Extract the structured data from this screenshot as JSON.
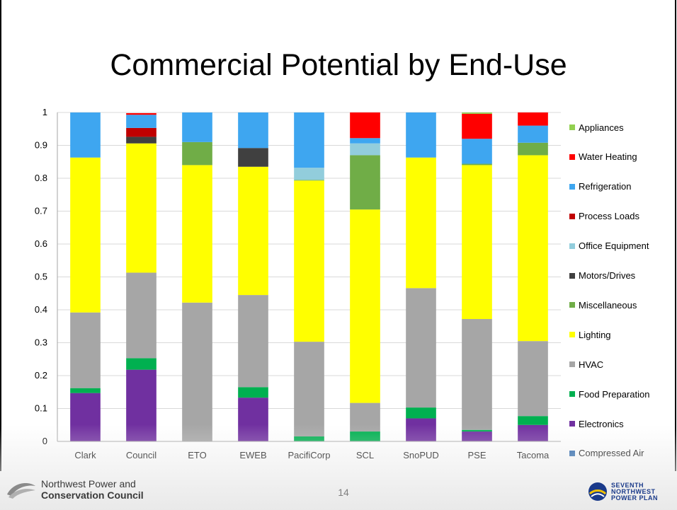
{
  "slide": {
    "title": "Commercial Potential by End-Use",
    "page_number": "14",
    "footer_left": {
      "line1": "Northwest Power and",
      "line2": "Conservation Council"
    },
    "footer_right": {
      "line1": "SEVENTH",
      "line2": "NORTHWEST",
      "line3": "POWER PLAN"
    }
  },
  "chart_data": {
    "type": "bar",
    "stacked": true,
    "title": "",
    "xlabel": "",
    "ylabel": "",
    "ylim": [
      0,
      1
    ],
    "yticks": [
      "0",
      "0.1",
      "0.2",
      "0.3",
      "0.4",
      "0.5",
      "0.6",
      "0.7",
      "0.8",
      "0.9",
      "1"
    ],
    "grid": true,
    "legend_position": "right",
    "categories": [
      "Clark",
      "Council",
      "ETO",
      "EWEB",
      "PacifiCorp",
      "SCL",
      "SnoPUD",
      "PSE",
      "Tacoma"
    ],
    "series": [
      {
        "name": "Compressed Air",
        "color": "#1f5fa8",
        "values": [
          0,
          0,
          0,
          0,
          0,
          0,
          0,
          0,
          0
        ]
      },
      {
        "name": "Electronics",
        "color": "#7030a0",
        "values": [
          0.147,
          0.218,
          0,
          0.133,
          0,
          0,
          0.07,
          0.03,
          0.05
        ]
      },
      {
        "name": "Food Preparation",
        "color": "#00b050",
        "values": [
          0.015,
          0.035,
          0,
          0.032,
          0.015,
          0.03,
          0.033,
          0.005,
          0.027
        ]
      },
      {
        "name": "HVAC",
        "color": "#a6a6a6",
        "values": [
          0.23,
          0.26,
          0.422,
          0.28,
          0.288,
          0.087,
          0.363,
          0.337,
          0.228
        ]
      },
      {
        "name": "Lighting",
        "color": "#ffff00",
        "values": [
          0.471,
          0.393,
          0.418,
          0.39,
          0.49,
          0.588,
          0.397,
          0.468,
          0.565
        ]
      },
      {
        "name": "Miscellaneous",
        "color": "#70ad47",
        "values": [
          0,
          0,
          0.07,
          0,
          0.002,
          0.165,
          0,
          0.004,
          0.038
        ]
      },
      {
        "name": "Motors/Drives",
        "color": "#404040",
        "values": [
          0,
          0.02,
          0,
          0.057,
          0,
          0,
          0,
          0,
          0
        ]
      },
      {
        "name": "Office Equipment",
        "color": "#92cddc",
        "values": [
          0,
          0,
          0,
          0,
          0.037,
          0.036,
          0,
          0,
          0
        ]
      },
      {
        "name": "Process Loads",
        "color": "#c00000",
        "values": [
          0,
          0.027,
          0,
          0,
          0,
          0,
          0,
          0,
          0
        ]
      },
      {
        "name": "Refrigeration",
        "color": "#3ea6f0",
        "values": [
          0.137,
          0.04,
          0.09,
          0.108,
          0.168,
          0.016,
          0.137,
          0.076,
          0.052
        ]
      },
      {
        "name": "Water Heating",
        "color": "#ff0000",
        "values": [
          0,
          0.005,
          0,
          0,
          0,
          0.078,
          0,
          0.076,
          0.04
        ]
      },
      {
        "name": "Appliances",
        "color": "#92d050",
        "values": [
          0,
          0,
          0,
          0,
          0,
          0,
          0,
          0.004,
          0
        ]
      }
    ]
  }
}
